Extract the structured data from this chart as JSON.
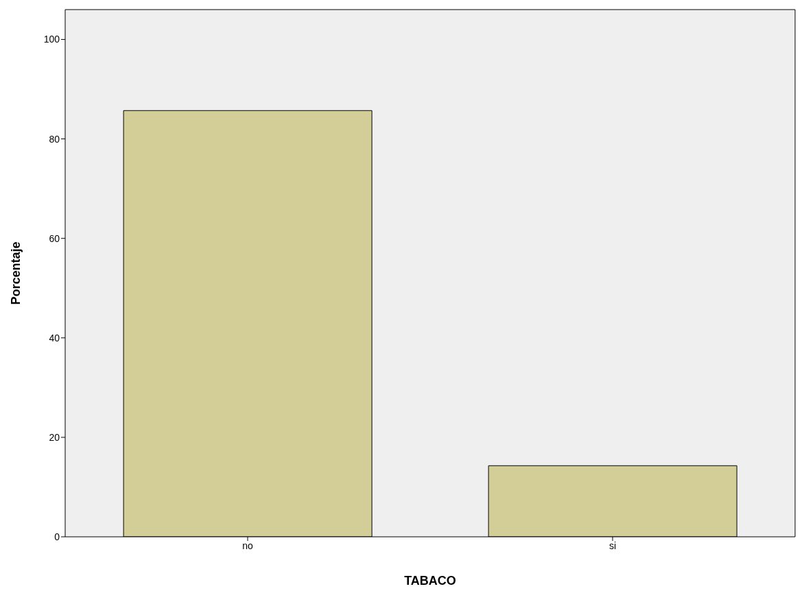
{
  "chart_data": {
    "type": "bar",
    "xlabel": "TABACO",
    "ylabel": "Porcentaje",
    "categories": [
      "no",
      "si"
    ],
    "values": [
      85.7,
      14.3
    ],
    "color": "#d3ce97",
    "ylim": [
      0,
      106
    ],
    "yticks": [
      0,
      20,
      40,
      60,
      80,
      100
    ],
    "grid": false
  }
}
